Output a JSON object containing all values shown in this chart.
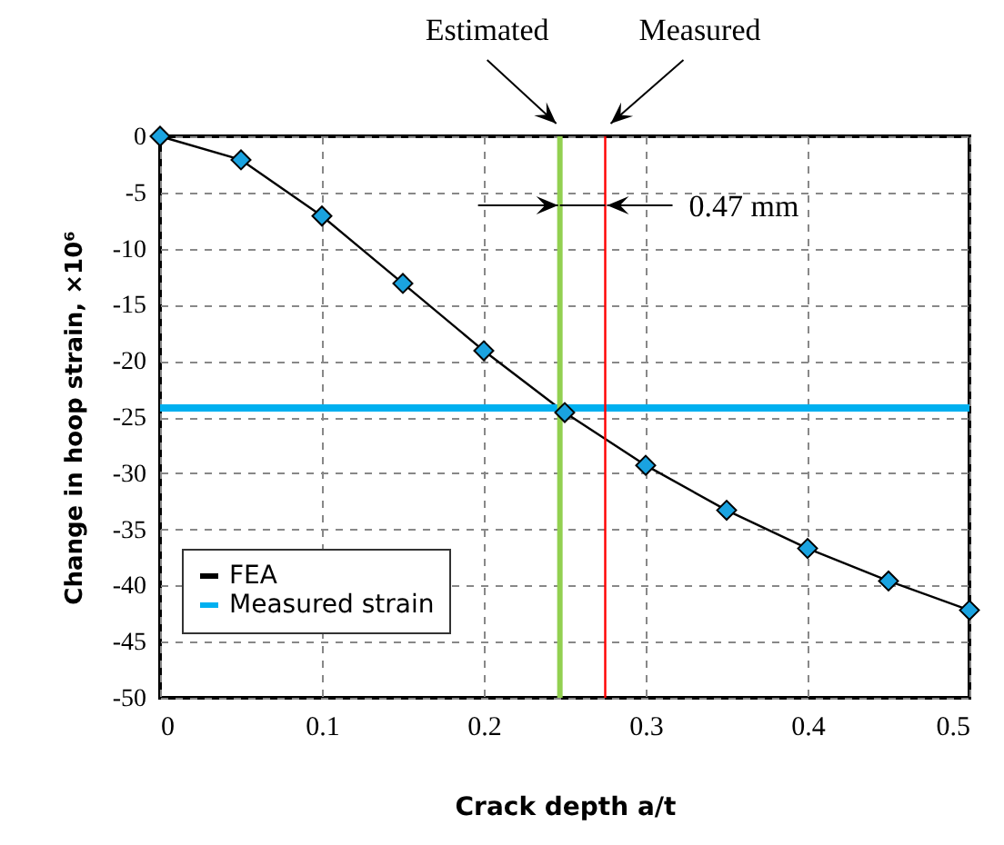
{
  "chart_data": {
    "type": "line",
    "xlabel": "Crack depth a/t",
    "ylabel": "Change in hoop strain, ×10⁶",
    "x": [
      0,
      0.05,
      0.1,
      0.15,
      0.2,
      0.25,
      0.3,
      0.35,
      0.4,
      0.45,
      0.5
    ],
    "series": [
      {
        "name": "FEA",
        "color": "#1aa3e0",
        "marker": "diamond",
        "values": [
          0,
          -2.1,
          -7.1,
          -13.1,
          -19.1,
          -24.6,
          -29.3,
          -33.3,
          -36.7,
          -39.6,
          -42.2
        ]
      },
      {
        "name": "Measured strain",
        "color": "#00b0f0",
        "marker": "none",
        "x": [
          0,
          0.5
        ],
        "values": [
          -24.2,
          -24.2
        ]
      }
    ],
    "ref_lines": [
      {
        "axis": "x",
        "value": 0.247,
        "label": "Estimated",
        "color": "#92d050"
      },
      {
        "axis": "x",
        "value": 0.275,
        "label": "Measured",
        "color": "#ff0000"
      }
    ],
    "annotations": [
      "0.47 mm"
    ],
    "xlim": [
      0,
      0.5
    ],
    "xticks": [
      0,
      0.1,
      0.2,
      0.3,
      0.4,
      0.5
    ],
    "ylim": [
      -50,
      0
    ],
    "yticks": [
      -50,
      -45,
      -40,
      -35,
      -30,
      -25,
      -20,
      -15,
      -10,
      -5,
      0
    ],
    "grid": true,
    "legend": "bottom left"
  }
}
